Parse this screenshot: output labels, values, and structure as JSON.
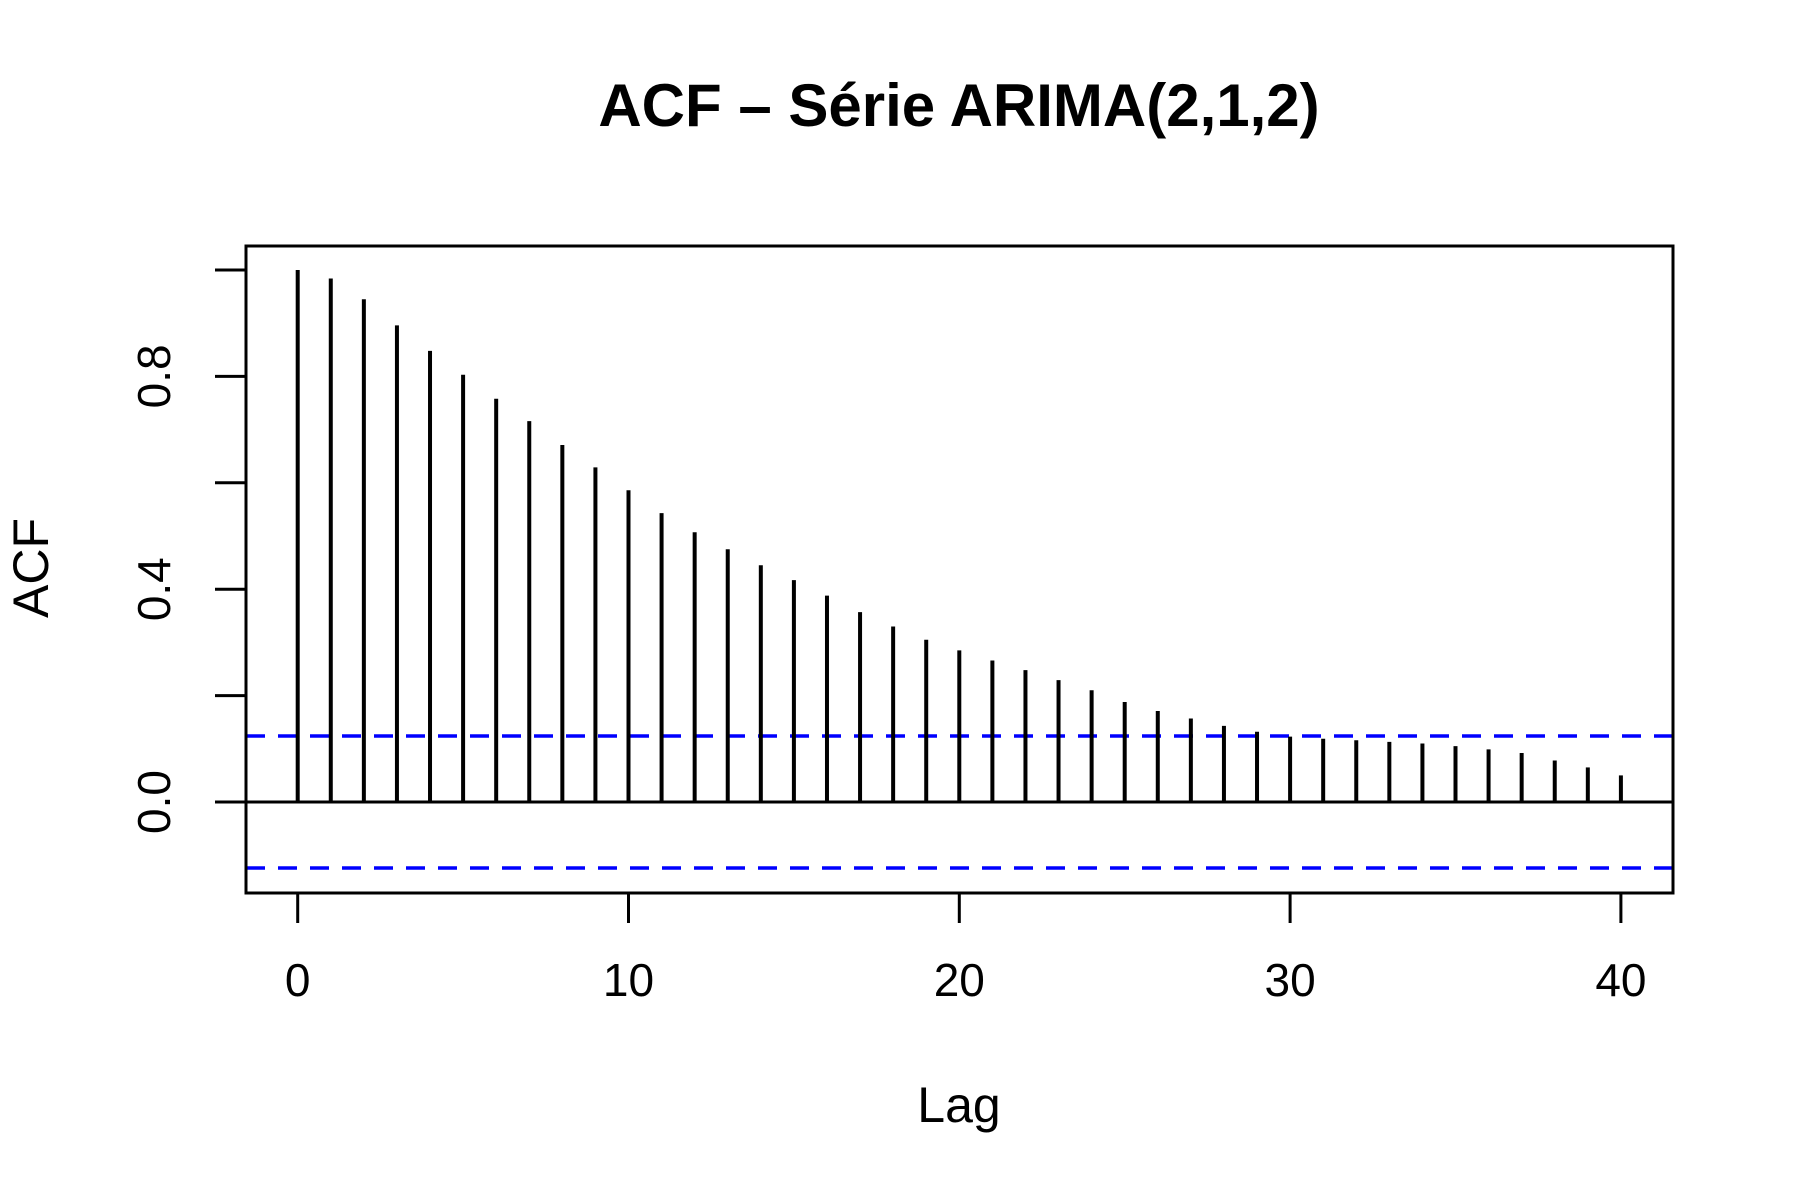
{
  "title": "ACF – Série ARIMA(2,1,2)",
  "chart_data": {
    "type": "bar",
    "subtype": "acf-stem-plot",
    "title": "ACF – Série ARIMA(2,1,2)",
    "xlabel": "Lag",
    "ylabel": "ACF",
    "x": [
      0,
      1,
      2,
      3,
      4,
      5,
      6,
      7,
      8,
      9,
      10,
      11,
      12,
      13,
      14,
      15,
      16,
      17,
      18,
      19,
      20,
      21,
      22,
      23,
      24,
      25,
      26,
      27,
      28,
      29,
      30,
      31,
      32,
      33,
      34,
      35,
      36,
      37,
      38,
      39,
      40
    ],
    "values": [
      1.0,
      0.984,
      0.945,
      0.896,
      0.848,
      0.803,
      0.758,
      0.716,
      0.671,
      0.629,
      0.586,
      0.543,
      0.507,
      0.475,
      0.445,
      0.417,
      0.388,
      0.357,
      0.33,
      0.305,
      0.285,
      0.266,
      0.248,
      0.229,
      0.21,
      0.188,
      0.171,
      0.157,
      0.143,
      0.132,
      0.123,
      0.119,
      0.116,
      0.113,
      0.11,
      0.105,
      0.099,
      0.092,
      0.078,
      0.065,
      0.05
    ],
    "confidence_bounds": {
      "upper": 0.124,
      "lower": -0.124,
      "line_style": "dashed",
      "color": "#0000FF"
    },
    "zero_line": true,
    "bar_color": "#000000",
    "axis_color": "#000000",
    "background_color": "#FFFFFF",
    "xlim": [
      -1.6,
      41.6
    ],
    "ylim": [
      -0.17,
      1.05
    ],
    "grid": false,
    "legend": false,
    "x_ticks": {
      "values": [
        0,
        10,
        20,
        30,
        40
      ],
      "labels": [
        "0",
        "10",
        "20",
        "30",
        "40"
      ]
    },
    "y_ticks": {
      "values": [
        0.0,
        0.2,
        0.4,
        0.6,
        0.8,
        1.0
      ],
      "labels": [
        "0.0",
        "",
        "0.4",
        "",
        "0.8",
        ""
      ]
    }
  }
}
